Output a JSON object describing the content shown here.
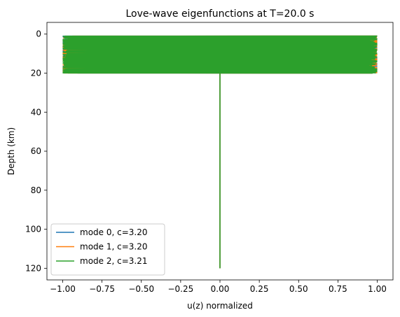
{
  "chart_data": {
    "type": "line",
    "title": "Love-wave eigenfunctions at T=20.0 s",
    "xlabel": "u(z) normalized",
    "ylabel": "Depth (km)",
    "xlim": [
      -1.1,
      1.1
    ],
    "ylim": [
      125.97,
      -6.0
    ],
    "y_inverted": true,
    "xticks": [
      -1.0,
      -0.75,
      -0.5,
      -0.25,
      0.0,
      0.25,
      0.5,
      0.75,
      1.0
    ],
    "xtick_labels": [
      "−1.00",
      "−0.75",
      "−0.50",
      "−0.25",
      "0.00",
      "0.25",
      "0.50",
      "0.75",
      "1.00"
    ],
    "yticks": [
      0,
      20,
      40,
      60,
      80,
      100,
      120
    ],
    "ytick_labels": [
      "0",
      "20",
      "40",
      "60",
      "80",
      "100",
      "120"
    ],
    "grid": false,
    "legend_position": "lower-left",
    "series": [
      {
        "name": "mode 0, c=3.20",
        "color": "#1f77b4",
        "description": "oscillates between about -1 and 1 from 1 to 20 km depth, then 0 down to 120 km",
        "oscillation_range": [
          1.0,
          20.0
        ],
        "tail": [
          [
            0.0,
            20.0
          ],
          [
            0.0,
            120.0
          ]
        ]
      },
      {
        "name": "mode 1, c=3.20",
        "color": "#ff7f0e",
        "description": "oscillates between about -1 and 1 from 1 to 20 km depth, then 0 down to 120 km",
        "oscillation_range": [
          1.0,
          20.0
        ],
        "tail": [
          [
            0.0,
            20.0
          ],
          [
            0.0,
            120.0
          ]
        ]
      },
      {
        "name": "mode 2, c=3.21",
        "color": "#2ca02c",
        "description": "oscillates between about -1 and 1 from 1 to 20 km depth, then 0 down to 120 km",
        "oscillation_range": [
          1.0,
          20.0
        ],
        "tail": [
          [
            0.0,
            20.0
          ],
          [
            0.0,
            120.0
          ]
        ]
      }
    ]
  }
}
